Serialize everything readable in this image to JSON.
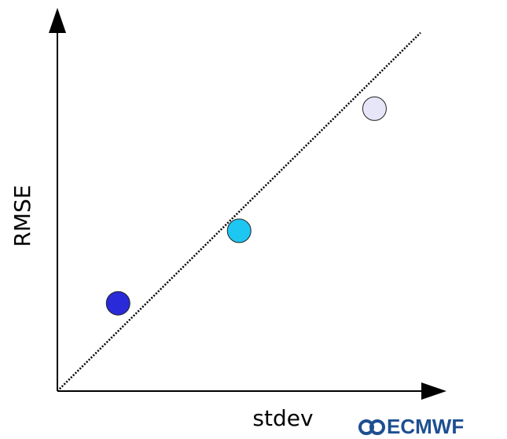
{
  "chart_data": {
    "type": "scatter",
    "x_label": "stdev",
    "y_label": "RMSE",
    "x": [
      0.157,
      0.47,
      0.82
    ],
    "y": [
      0.23,
      0.42,
      0.74
    ],
    "colors": [
      "#2a2ad8",
      "#1ec6f2",
      "#e6e6f8"
    ],
    "xlim": [
      0,
      1
    ],
    "ylim": [
      0,
      1
    ],
    "identity_line": true,
    "logo": "ECMWF"
  }
}
